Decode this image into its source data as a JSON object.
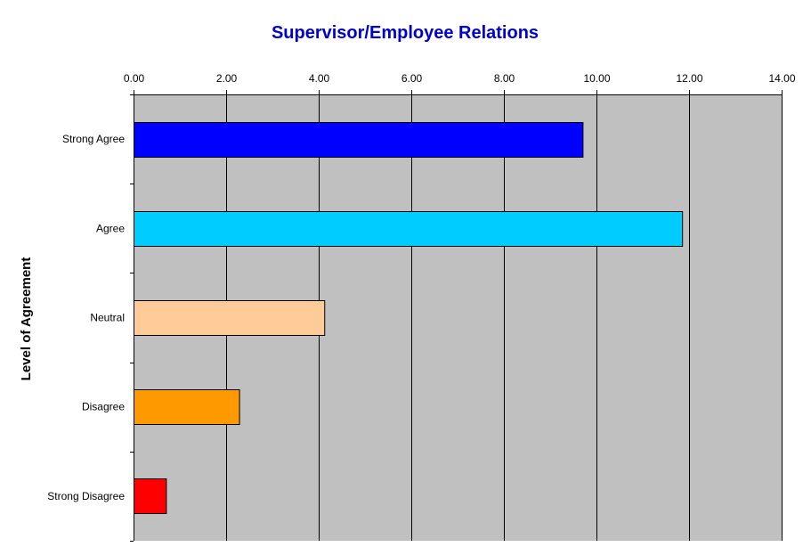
{
  "chart_data": {
    "type": "bar",
    "orientation": "horizontal",
    "title": "Supervisor/Employee Relations",
    "ylabel": "Level of Agreement",
    "xlabel": "",
    "categories": [
      "Strong Agree",
      "Agree",
      "Neutral",
      "Disagree",
      "Strong Disagree"
    ],
    "values": [
      9.7,
      11.85,
      4.12,
      2.28,
      0.7
    ],
    "colors": [
      "#0000ff",
      "#00ccff",
      "#ffcc99",
      "#ff9900",
      "#ff0000"
    ],
    "xlim": [
      0,
      14
    ],
    "xticks": [
      0,
      2,
      4,
      6,
      8,
      10,
      12,
      14
    ],
    "xtick_labels": [
      "0.00",
      "2.00",
      "4.00",
      "6.00",
      "8.00",
      "10.00",
      "12.00",
      "14.00"
    ],
    "x_axis_position": "top",
    "grid": true,
    "plot_background": "#c0c0c0"
  }
}
